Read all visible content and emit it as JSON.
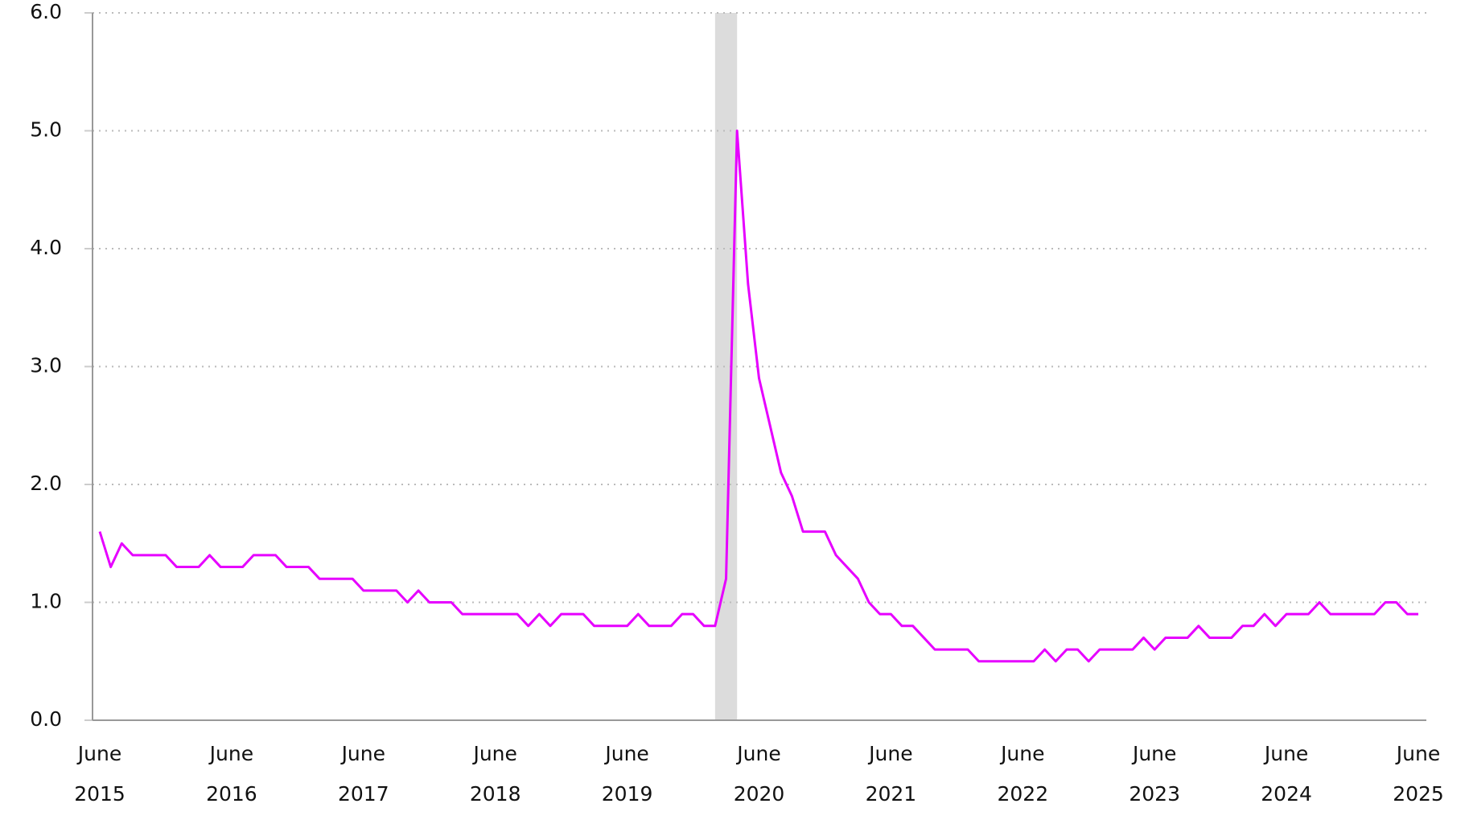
{
  "chart_data": {
    "type": "line",
    "categories": [
      "June 2015",
      null,
      null,
      null,
      null,
      null,
      null,
      null,
      null,
      null,
      null,
      null,
      "June 2016",
      null,
      null,
      null,
      null,
      null,
      null,
      null,
      null,
      null,
      null,
      null,
      "June 2017",
      null,
      null,
      null,
      null,
      null,
      null,
      null,
      null,
      null,
      null,
      null,
      "June 2018",
      null,
      null,
      null,
      null,
      null,
      null,
      null,
      null,
      null,
      null,
      null,
      "June 2019",
      null,
      null,
      null,
      null,
      null,
      null,
      null,
      null,
      null,
      null,
      null,
      "June 2020",
      null,
      null,
      null,
      null,
      null,
      null,
      null,
      null,
      null,
      null,
      null,
      "June 2021",
      null,
      null,
      null,
      null,
      null,
      null,
      null,
      null,
      null,
      null,
      null,
      "June 2022",
      null,
      null,
      null,
      null,
      null,
      null,
      null,
      null,
      null,
      null,
      null,
      "June 2023",
      null,
      null,
      null,
      null,
      null,
      null,
      null,
      null,
      null,
      null,
      null,
      "June 2024",
      null,
      null,
      null,
      null,
      null,
      null,
      null,
      null,
      null,
      null,
      null,
      "June 2025"
    ],
    "series": [
      {
        "color": "#e600ff",
        "values": [
          1.6,
          1.3,
          1.5,
          1.4,
          1.4,
          1.4,
          1.4,
          1.3,
          1.3,
          1.3,
          1.4,
          1.3,
          1.3,
          1.3,
          1.4,
          1.4,
          1.4,
          1.3,
          1.3,
          1.3,
          1.2,
          1.2,
          1.2,
          1.2,
          1.1,
          1.1,
          1.1,
          1.1,
          1.0,
          1.1,
          1.0,
          1.0,
          1.0,
          0.9,
          0.9,
          0.9,
          0.9,
          0.9,
          0.9,
          0.8,
          0.9,
          0.8,
          0.9,
          0.9,
          0.9,
          0.8,
          0.8,
          0.8,
          0.8,
          0.9,
          0.8,
          0.8,
          0.8,
          0.9,
          0.9,
          0.8,
          0.8,
          1.2,
          5.0,
          3.7,
          2.9,
          2.5,
          2.1,
          1.9,
          1.6,
          1.6,
          1.6,
          1.4,
          1.3,
          1.2,
          1.0,
          0.9,
          0.9,
          0.8,
          0.8,
          0.7,
          0.6,
          0.6,
          0.6,
          0.6,
          0.5,
          0.5,
          0.5,
          0.5,
          0.5,
          0.5,
          0.6,
          0.5,
          0.6,
          0.6,
          0.5,
          0.6,
          0.6,
          0.6,
          0.6,
          0.7,
          0.6,
          0.7,
          0.7,
          0.7,
          0.8,
          0.7,
          0.7,
          0.7,
          0.8,
          0.8,
          0.9,
          0.8,
          0.9,
          0.9,
          0.9,
          1.0,
          0.9,
          0.9,
          0.9,
          0.9,
          0.9,
          1.0,
          1.0,
          0.9,
          0.9
        ]
      }
    ],
    "shaded_band": {
      "from": 56,
      "to": 58,
      "color": "#dcdcdc"
    },
    "ylim": [
      0,
      6
    ],
    "yticks": [
      {
        "value": 0,
        "label": "0.0"
      },
      {
        "value": 1,
        "label": "1.0"
      },
      {
        "value": 2,
        "label": "2.0"
      },
      {
        "value": 3,
        "label": "3.0"
      },
      {
        "value": 4,
        "label": "4.0"
      },
      {
        "value": 5,
        "label": "5.0"
      },
      {
        "value": 6,
        "label": "6.0"
      }
    ],
    "grid": true
  }
}
